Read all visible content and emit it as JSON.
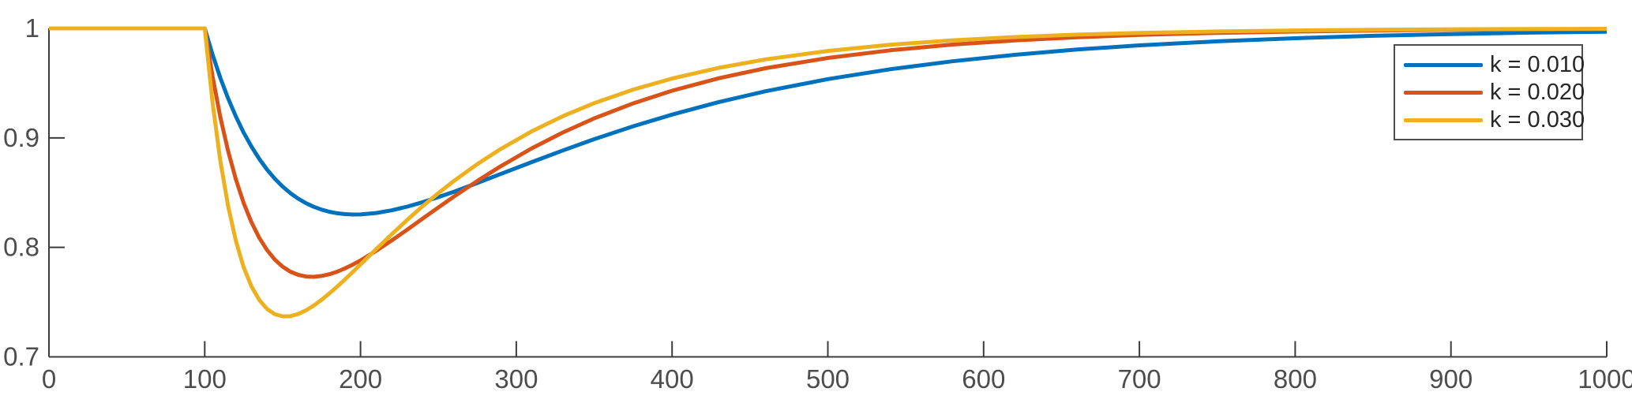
{
  "figure": {
    "background": "#ffffff",
    "axis_color": "#3c3c3c",
    "tick_label_color": "#4d4d4d",
    "legend_border_color": "#4d4d4d",
    "legend_text_color": "#262626"
  },
  "chart_data": {
    "type": "line",
    "title": "",
    "xlabel": "",
    "ylabel": "",
    "xlim": [
      0,
      1000
    ],
    "ylim": [
      0.7,
      1.0
    ],
    "xticks": [
      0,
      100,
      200,
      300,
      400,
      500,
      600,
      700,
      800,
      900,
      1000
    ],
    "xtick_labels": [
      "0",
      "100",
      "200",
      "300",
      "400",
      "500",
      "600",
      "700",
      "800",
      "900",
      "1000"
    ],
    "yticks": [
      0.7,
      0.8,
      0.9,
      1
    ],
    "ytick_labels": [
      "0.7",
      "0.8",
      "0.9",
      "1"
    ],
    "grid": false,
    "legend_position": "northeast",
    "x": [
      0,
      100,
      105,
      110,
      115,
      120,
      125,
      130,
      135,
      140,
      145,
      150,
      155,
      160,
      165,
      170,
      175,
      180,
      185,
      190,
      195,
      200,
      210,
      220,
      230,
      240,
      250,
      260,
      275,
      290,
      310,
      330,
      350,
      375,
      400,
      430,
      460,
      500,
      540,
      580,
      620,
      660,
      700,
      750,
      800,
      850,
      900,
      950,
      1000
    ],
    "series": [
      {
        "label": "k = 0.010",
        "color": "#0072BD",
        "line_width": 5,
        "min_point": {
          "x": 197,
          "y": 0.83
        },
        "y": [
          1,
          1,
          0.9761,
          0.9549,
          0.9361,
          0.9195,
          0.9048,
          0.892,
          0.8808,
          0.8711,
          0.8627,
          0.8556,
          0.8495,
          0.8445,
          0.8404,
          0.8371,
          0.8345,
          0.8325,
          0.8312,
          0.8304,
          0.83,
          0.8301,
          0.8314,
          0.8338,
          0.8372,
          0.8413,
          0.8459,
          0.8508,
          0.8588,
          0.867,
          0.8779,
          0.8886,
          0.8988,
          0.9106,
          0.9213,
          0.9327,
          0.9426,
          0.9537,
          0.9627,
          0.97,
          0.9759,
          0.9807,
          0.9845,
          0.9882,
          0.991,
          0.9932,
          0.9948,
          0.9961,
          0.997
        ]
      },
      {
        "label": "k = 0.020",
        "color": "#D95319",
        "line_width": 5,
        "min_point": {
          "x": 170,
          "y": 0.773
        },
        "y": [
          1,
          1,
          0.9562,
          0.9191,
          0.888,
          0.862,
          0.8405,
          0.8229,
          0.8087,
          0.7975,
          0.7888,
          0.7824,
          0.7778,
          0.7749,
          0.7734,
          0.7731,
          0.7739,
          0.7755,
          0.7778,
          0.7808,
          0.7842,
          0.7881,
          0.7968,
          0.8063,
          0.8162,
          0.8264,
          0.8365,
          0.8464,
          0.8607,
          0.8741,
          0.8905,
          0.905,
          0.9178,
          0.9315,
          0.9431,
          0.9545,
          0.9636,
          0.973,
          0.98,
          0.9852,
          0.989,
          0.9919,
          0.994,
          0.9959,
          0.9971,
          0.998,
          0.9987,
          0.9991,
          0.9994
        ]
      },
      {
        "label": "k = 0.030",
        "color": "#EDB120",
        "line_width": 5,
        "min_point": {
          "x": 152,
          "y": 0.737
        },
        "y": [
          1,
          1,
          0.9324,
          0.8792,
          0.8377,
          0.8058,
          0.7818,
          0.7643,
          0.7519,
          0.7437,
          0.739,
          0.737,
          0.7372,
          0.7392,
          0.7425,
          0.7469,
          0.7521,
          0.7579,
          0.7641,
          0.7707,
          0.7775,
          0.7844,
          0.7983,
          0.8119,
          0.8251,
          0.8377,
          0.8496,
          0.8607,
          0.8761,
          0.8899,
          0.9061,
          0.9199,
          0.9317,
          0.9441,
          0.9542,
          0.964,
          0.9717,
          0.9794,
          0.9851,
          0.9891,
          0.9921,
          0.9943,
          0.9958,
          0.9972,
          0.9981,
          0.9987,
          0.9992,
          0.9994,
          0.9996
        ]
      }
    ]
  }
}
